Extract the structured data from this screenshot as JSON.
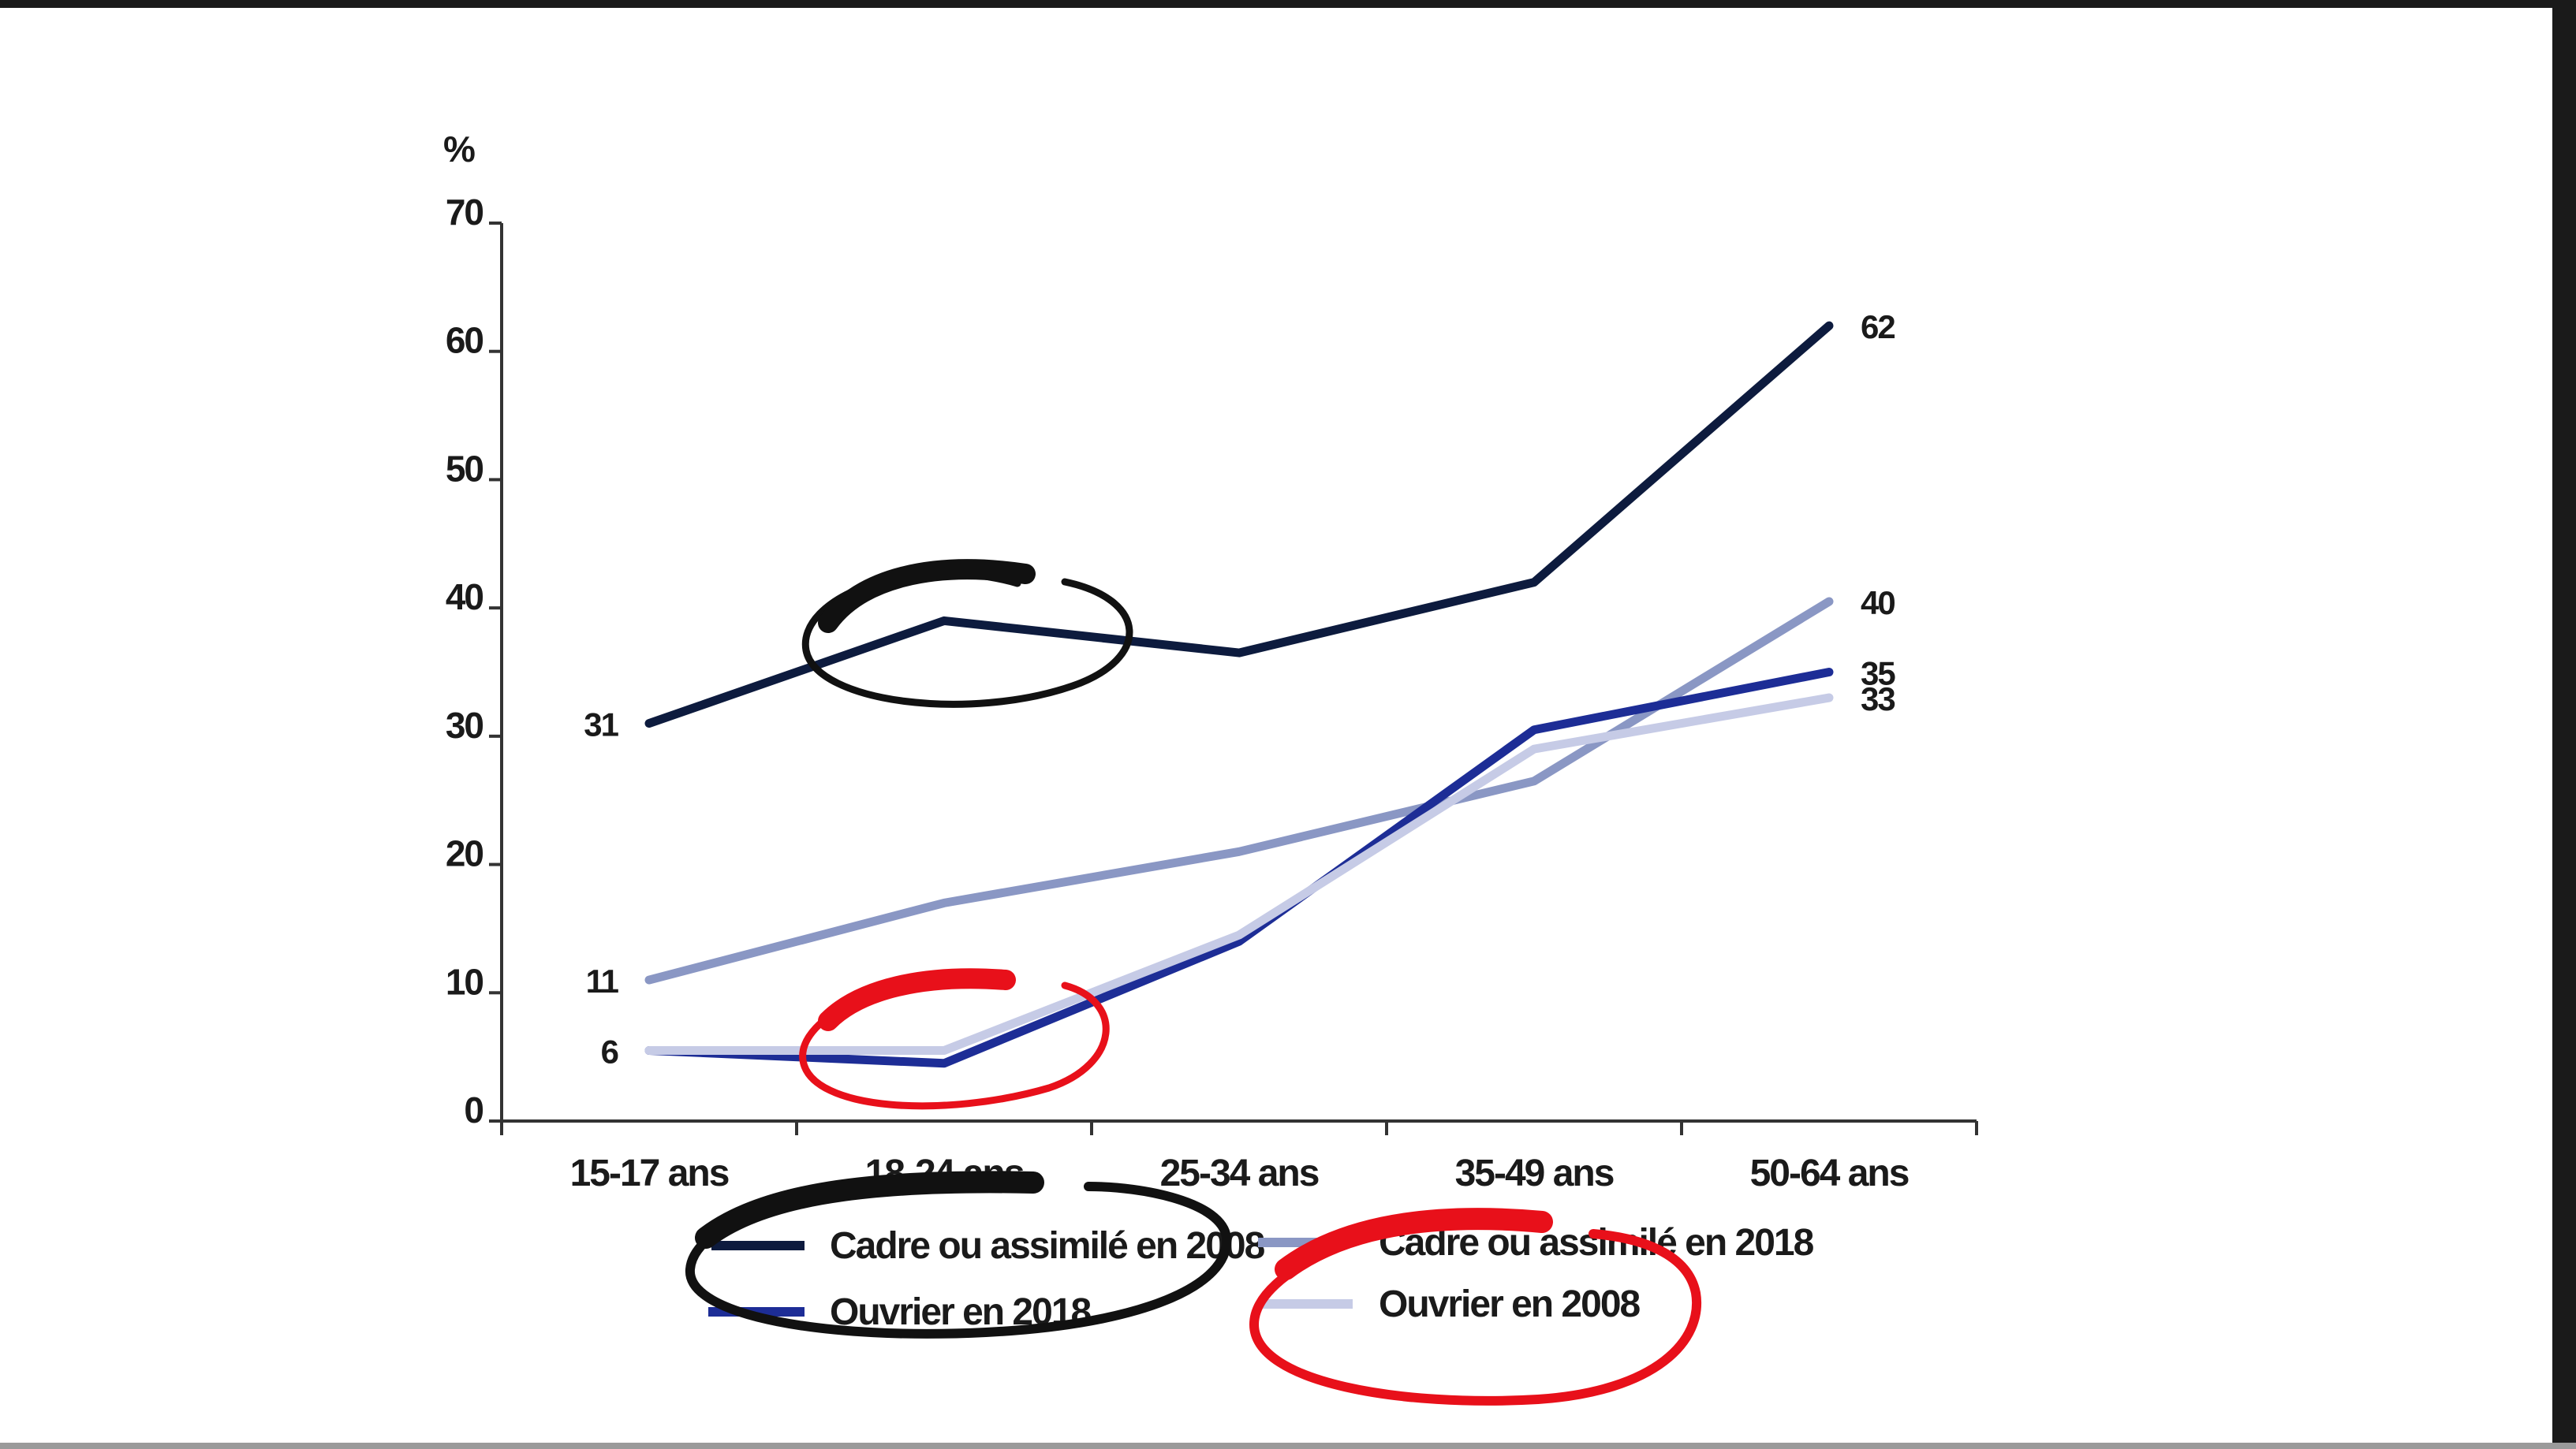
{
  "chart_data": {
    "type": "line",
    "title": "",
    "xlabel": "",
    "ylabel": "%",
    "ylim": [
      0,
      70
    ],
    "yticks": [
      "0",
      "10",
      "20",
      "30",
      "40",
      "50",
      "60",
      "70"
    ],
    "categories": [
      "15-17 ans",
      "18-24 ans",
      "25-34 ans",
      "35-49 ans",
      "50-64 ans"
    ],
    "series": [
      {
        "name": "Cadre ou assimilé en 2008",
        "color": "#0d1b3e",
        "values": [
          31,
          39,
          36.5,
          42,
          62
        ],
        "labels": [
          "31",
          "",
          "",
          "",
          "62"
        ]
      },
      {
        "name": "Cadre ou assimilé en 2018",
        "color": "#8a97c4",
        "values": [
          11,
          17,
          21,
          26.5,
          40.5
        ],
        "labels": [
          "11",
          "",
          "",
          "",
          "40"
        ]
      },
      {
        "name": "Ouvrier en 2018",
        "color": "#1d2d96",
        "values": [
          5.5,
          4.5,
          14,
          30.5,
          35
        ],
        "labels": [
          "6",
          "",
          "",
          "",
          "35"
        ]
      },
      {
        "name": "Ouvrier en 2008",
        "color": "#c6cbe6",
        "values": [
          5.5,
          5.5,
          14.5,
          29,
          33
        ],
        "labels": [
          "",
          "",
          "",
          "",
          "33"
        ]
      }
    ],
    "legend_position": "bottom",
    "grid": false,
    "annotations": [
      "black circle around 18-24 ans on Cadre ou assimilé en 2008",
      "red circle around 18-24 ans on Ouvrier lines",
      "black circle around legend Cadre ou assimilé en 2008 / Ouvrier en 2018",
      "red circle around legend Cadre ou assimilé en 2018 / Ouvrier en 2008"
    ]
  }
}
